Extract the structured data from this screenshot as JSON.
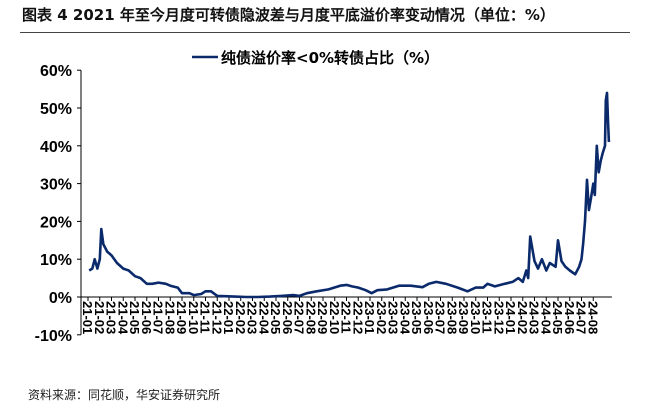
{
  "title": "图表 4 2021 年至今月度可转债隐波差与月度平底溢价率变动情况（单位：%）",
  "source": "资料来源：同花顺，华安证券研究所",
  "chart_data": {
    "type": "line",
    "title": "",
    "xlabel": "",
    "ylabel": "",
    "ylim": [
      -10,
      60
    ],
    "yticks": [
      "-10%",
      "0%",
      "10%",
      "20%",
      "30%",
      "40%",
      "50%",
      "60%"
    ],
    "ytick_values": [
      -10,
      0,
      10,
      20,
      30,
      40,
      50,
      60
    ],
    "xticks": [
      "21-01",
      "21-02",
      "21-03",
      "21-04",
      "21-05",
      "21-06",
      "21-07",
      "21-08",
      "21-09",
      "21-10",
      "21-11",
      "21-12",
      "22-01",
      "22-02",
      "22-03",
      "22-04",
      "22-05",
      "22-06",
      "22-07",
      "22-08",
      "22-09",
      "22-10",
      "22-11",
      "22-12",
      "23-01",
      "23-02",
      "23-03",
      "23-04",
      "23-05",
      "23-06",
      "23-07",
      "23-08",
      "23-09",
      "23-10",
      "23-11",
      "23-12",
      "24-01",
      "24-02",
      "24-03",
      "24-04",
      "24-05",
      "24-06",
      "24-07",
      "24-08"
    ],
    "legend_position": "top-center",
    "grid": false,
    "series": [
      {
        "name": "纯债溢价率<0%转债占比（%）",
        "color": "#0b2a6b",
        "x": [
          "2021-01-04",
          "2021-01-12",
          "2021-01-18",
          "2021-01-25",
          "2021-02-01",
          "2021-02-05",
          "2021-02-10",
          "2021-02-20",
          "2021-03-01",
          "2021-03-15",
          "2021-04-01",
          "2021-04-15",
          "2021-05-01",
          "2021-05-15",
          "2021-06-01",
          "2021-06-15",
          "2021-07-01",
          "2021-07-20",
          "2021-08-01",
          "2021-08-20",
          "2021-09-01",
          "2021-09-20",
          "2021-10-01",
          "2021-10-20",
          "2021-11-01",
          "2021-11-15",
          "2021-12-01",
          "2021-12-20",
          "2022-01-15",
          "2022-02-15",
          "2022-03-15",
          "2022-04-15",
          "2022-05-15",
          "2022-06-15",
          "2022-07-01",
          "2022-07-20",
          "2022-08-15",
          "2022-09-15",
          "2022-10-15",
          "2022-11-01",
          "2022-11-15",
          "2022-12-01",
          "2022-12-20",
          "2023-01-05",
          "2023-01-20",
          "2023-02-15",
          "2023-03-15",
          "2023-04-15",
          "2023-05-15",
          "2023-06-01",
          "2023-06-20",
          "2023-07-15",
          "2023-08-15",
          "2023-09-10",
          "2023-10-01",
          "2023-10-20",
          "2023-11-01",
          "2023-11-20",
          "2023-12-15",
          "2024-01-05",
          "2024-01-20",
          "2024-02-01",
          "2024-02-10",
          "2024-02-15",
          "2024-02-20",
          "2024-03-01",
          "2024-03-10",
          "2024-03-20",
          "2024-04-01",
          "2024-04-10",
          "2024-04-25",
          "2024-05-01",
          "2024-05-10",
          "2024-05-20",
          "2024-06-01",
          "2024-06-15",
          "2024-06-25",
          "2024-07-01",
          "2024-07-05",
          "2024-07-10",
          "2024-07-15",
          "2024-07-20",
          "2024-07-25",
          "2024-08-01",
          "2024-08-05",
          "2024-08-10",
          "2024-08-15",
          "2024-08-20",
          "2024-08-25",
          "2024-09-01",
          "2024-09-03",
          "2024-09-06",
          "2024-09-09",
          "2024-09-11"
        ],
        "values": [
          7,
          7.5,
          10,
          7.5,
          10,
          18,
          14,
          12,
          11,
          9,
          7.5,
          7,
          5.5,
          5,
          3.5,
          3.5,
          3.8,
          3.5,
          3,
          2.5,
          1,
          1,
          0.5,
          0.8,
          1.5,
          1.5,
          0.3,
          0.2,
          0.1,
          0,
          0,
          0.1,
          0.3,
          0.5,
          0.3,
          1,
          1.5,
          2,
          3,
          3.2,
          2.8,
          2.5,
          1.8,
          1,
          1.8,
          2,
          3,
          3,
          2.6,
          3.5,
          4,
          3.5,
          2.5,
          1.5,
          2.5,
          2.5,
          3.5,
          2.8,
          3.5,
          4,
          5,
          4,
          7,
          5,
          16,
          9.5,
          7.5,
          10,
          7,
          9,
          8,
          15,
          9.5,
          8,
          7,
          6,
          8,
          10,
          14,
          20,
          31,
          23,
          26,
          30,
          27,
          40,
          33,
          36,
          38,
          40,
          52,
          54,
          46,
          41
        ]
      }
    ]
  }
}
